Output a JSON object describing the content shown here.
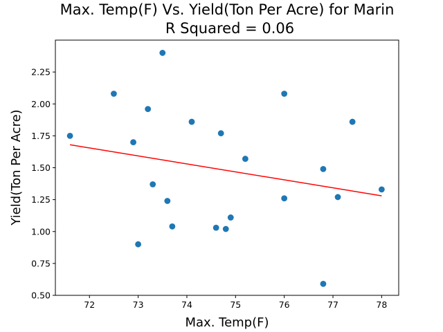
{
  "chart_data": {
    "type": "scatter",
    "title": "Max. Temp(F) Vs. Yield(Ton Per Acre) for Marin",
    "subtitle": "R Squared =  0.06",
    "xlabel": "Max. Temp(F)",
    "ylabel": "Yield(Ton Per Acre)",
    "xlim": [
      71.3,
      78.35
    ],
    "ylim": [
      0.5,
      2.5
    ],
    "xticks": [
      72,
      73,
      74,
      75,
      76,
      77,
      78
    ],
    "xtick_labels": [
      "72",
      "73",
      "74",
      "75",
      "76",
      "77",
      "78"
    ],
    "yticks": [
      0.5,
      0.75,
      1.0,
      1.25,
      1.5,
      1.75,
      2.0,
      2.25
    ],
    "ytick_labels": [
      "0.50",
      "0.75",
      "1.00",
      "1.25",
      "1.50",
      "1.75",
      "2.00",
      "2.25"
    ],
    "grid": false,
    "point_color": "#1f77b4",
    "fit_color": "#ff0000",
    "points": [
      {
        "x": 71.6,
        "y": 1.75
      },
      {
        "x": 72.5,
        "y": 2.08
      },
      {
        "x": 72.9,
        "y": 1.7
      },
      {
        "x": 73.0,
        "y": 0.9
      },
      {
        "x": 73.2,
        "y": 1.96
      },
      {
        "x": 73.3,
        "y": 1.37
      },
      {
        "x": 73.5,
        "y": 2.4
      },
      {
        "x": 73.6,
        "y": 1.24
      },
      {
        "x": 73.7,
        "y": 1.04
      },
      {
        "x": 74.1,
        "y": 1.86
      },
      {
        "x": 74.6,
        "y": 1.03
      },
      {
        "x": 74.7,
        "y": 1.77
      },
      {
        "x": 74.8,
        "y": 1.02
      },
      {
        "x": 74.9,
        "y": 1.11
      },
      {
        "x": 75.2,
        "y": 1.57
      },
      {
        "x": 76.0,
        "y": 2.08
      },
      {
        "x": 76.0,
        "y": 1.26
      },
      {
        "x": 76.8,
        "y": 1.49
      },
      {
        "x": 76.8,
        "y": 0.59
      },
      {
        "x": 77.1,
        "y": 1.27
      },
      {
        "x": 77.4,
        "y": 1.86
      },
      {
        "x": 78.0,
        "y": 1.33
      }
    ],
    "fit_line": {
      "x": [
        71.6,
        78.0
      ],
      "y": [
        1.68,
        1.28
      ]
    }
  }
}
